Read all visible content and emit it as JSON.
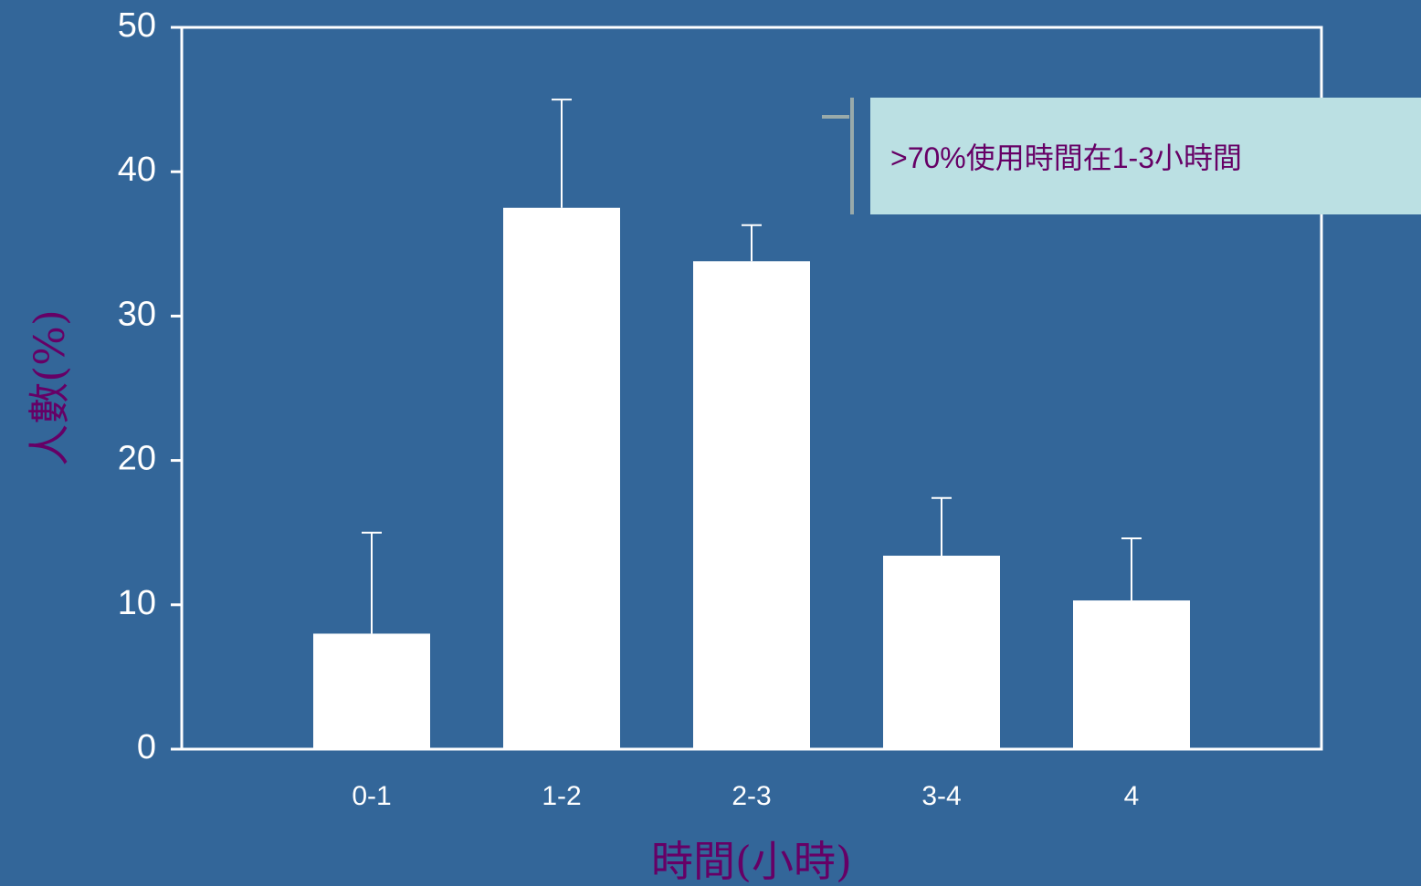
{
  "chart_data": {
    "type": "bar",
    "title": "",
    "xlabel": "時間(小時)",
    "ylabel": "人數(%)",
    "categories": [
      "0-1",
      "1-2",
      "2-3",
      "3-4",
      "4"
    ],
    "values": [
      8,
      37.5,
      33.8,
      13.4,
      10.3
    ],
    "error_upper": [
      15,
      45,
      36.3,
      17.4,
      14.6
    ],
    "ylim": [
      0,
      50
    ],
    "yticks": [
      0,
      10,
      20,
      30,
      40,
      50
    ],
    "grid": false,
    "legend": "none",
    "annotation": {
      "text": ">70%使用時間在1-3小時間"
    },
    "colors": {
      "background": "#336699",
      "bar": "#ffffff",
      "axis_title": "#660066",
      "annotation_bg": "#bbe0e3",
      "annotation_text": "#660066",
      "bracket": "#99aaaa"
    }
  }
}
